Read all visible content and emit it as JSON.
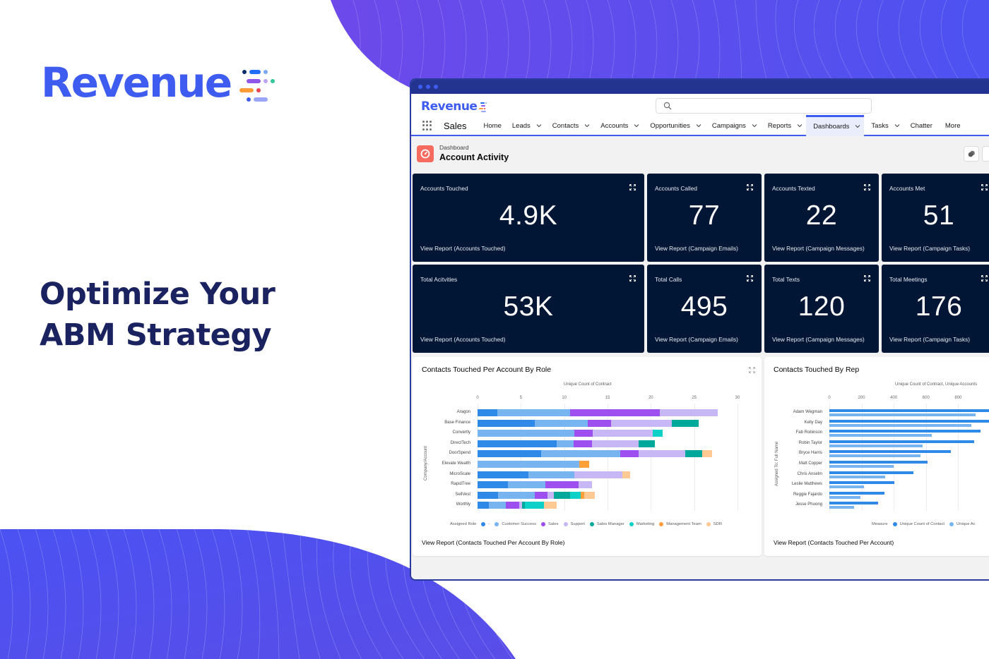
{
  "brand": {
    "name": "Revenue",
    "color": "#3e5cf0",
    "mark_colors": [
      "#0b2d6e",
      "#1f6ef7",
      "#7aa8f7",
      "#8f56ea",
      "#b9a5f2",
      "#31c79a",
      "#ff9c38",
      "#f0424f",
      "#3e5cf0",
      "#9aa6f5"
    ]
  },
  "hero": {
    "line1": "Optimize Your",
    "line2": "ABM Strategy",
    "color": "#1b2260"
  },
  "window": {
    "titlebar_color": "#22348f",
    "app_logo": "Revenue",
    "search": {
      "placeholder": "",
      "value": ""
    },
    "app_name": "Sales",
    "nav": [
      {
        "label": "Home",
        "dropdown": false,
        "active": false
      },
      {
        "label": "Leads",
        "dropdown": true,
        "active": false
      },
      {
        "label": "Contacts",
        "dropdown": true,
        "active": false
      },
      {
        "label": "Accounts",
        "dropdown": true,
        "active": false
      },
      {
        "label": "Opportunities",
        "dropdown": true,
        "active": false
      },
      {
        "label": "Campaigns",
        "dropdown": true,
        "active": false
      },
      {
        "label": "Reports",
        "dropdown": true,
        "active": false
      },
      {
        "label": "Dashboards",
        "dropdown": true,
        "active": true
      },
      {
        "label": "Tasks",
        "dropdown": true,
        "active": false
      },
      {
        "label": "Chatter",
        "dropdown": false,
        "active": false
      },
      {
        "label": "More",
        "dropdown": false,
        "active": false
      }
    ],
    "page": {
      "breadcrumb": "Dashboard",
      "title": "Account Activity"
    }
  },
  "metrics": [
    {
      "title": "Accounts Touched",
      "value": "4.9K",
      "link": "View Report (Accounts Touched)"
    },
    {
      "title": "Accounts Called",
      "value": "77",
      "link": "View Report (Campaign Emails)"
    },
    {
      "title": "Accounts Texted",
      "value": "22",
      "link": "View Report (Campaign Messages)"
    },
    {
      "title": "Accounts Met",
      "value": "51",
      "link": "View Report (Campaign Tasks)"
    },
    {
      "title": "Total Acitvities",
      "value": "53K",
      "link": "View Report (Accounts Touched)"
    },
    {
      "title": "Total Calls",
      "value": "495",
      "link": "View Report (Campaign Emails)"
    },
    {
      "title": "Total Texts",
      "value": "120",
      "link": "View Report (Campaign Messages)"
    },
    {
      "title": "Total Meetings",
      "value": "176",
      "link": "View Report (Campaign Tasks)"
    }
  ],
  "chart_data": [
    {
      "type": "bar",
      "orientation": "horizontal",
      "stacked": true,
      "title": "Contacts Touched Per Account By Role",
      "xlabel": "Unique Count of Contract",
      "ylabel": "Company/Account",
      "xlim": [
        0,
        30
      ],
      "xticks": [
        "0",
        "5",
        "10",
        "15",
        "20",
        "25",
        "30"
      ],
      "grid": true,
      "legend_title": "Assigned Role",
      "legend_position": "bottom",
      "categories": [
        "Aragon",
        "Base Finance",
        "Convertly",
        "DirectTech",
        "DoorSpend",
        "Elevate Wealth",
        "MicroScale",
        "RapidTree",
        "SellVest",
        "Worthly"
      ],
      "series": [
        {
          "name": "-",
          "color": "#2e8ae6",
          "values": [
            2.3,
            6.6,
            0,
            9.1,
            7.3,
            0,
            5.9,
            3.5,
            2.4,
            1.3
          ]
        },
        {
          "name": "Customer Success",
          "color": "#78b4f0",
          "values": [
            8.4,
            6.1,
            11.2,
            2.0,
            9.2,
            11.7,
            5.3,
            4.3,
            4.2,
            2.0
          ]
        },
        {
          "name": "Sales",
          "color": "#9d4ff0",
          "values": [
            10.3,
            2.7,
            2.1,
            2.1,
            2.1,
            0,
            0,
            3.9,
            1.5,
            1.5
          ]
        },
        {
          "name": "Support",
          "color": "#c7b7f5",
          "values": [
            6.7,
            7.0,
            6.9,
            5.4,
            5.4,
            0,
            5.5,
            1.5,
            0.7,
            0.3
          ]
        },
        {
          "name": "Sales Manager",
          "color": "#00a79b",
          "values": [
            0,
            3.1,
            0,
            1.9,
            1.9,
            0,
            0,
            0,
            1.9,
            0.4
          ]
        },
        {
          "name": "Marketing",
          "color": "#0dd1c8",
          "values": [
            0,
            0,
            1.2,
            0,
            0,
            0,
            0,
            0,
            1.2,
            2.2
          ]
        },
        {
          "name": "Management Team",
          "color": "#ff9f3a",
          "values": [
            0,
            0,
            0,
            0,
            0,
            1.2,
            0,
            0,
            0.4,
            0
          ]
        },
        {
          "name": "SDR",
          "color": "#ffc994",
          "values": [
            0,
            0,
            0,
            0,
            1.2,
            0,
            0.9,
            0,
            1.2,
            1.4
          ]
        }
      ],
      "footer_link": "View Report (Contacts Touched Per Account By Role)"
    },
    {
      "type": "bar",
      "orientation": "horizontal",
      "stacked": false,
      "title": "Contacts Touched By Rep",
      "xlabel": "Unique Count of Contract, Unique Accounts",
      "ylabel": "Assigned To: Full Name",
      "xlim": [
        0,
        1000
      ],
      "xticks": [
        "0",
        "200",
        "400",
        "600",
        "800"
      ],
      "grid": true,
      "legend_title": "Measure",
      "legend_position": "bottom",
      "categories": [
        "Adam Wegman",
        "Kelly Day",
        "Fab Robinson",
        "Robin Taylor",
        "Bryce Harris",
        "Matt Copper",
        "Chris Anselm",
        "Leslie Matthews",
        "Reggie Fajardo",
        "Jesse Phuong"
      ],
      "series": [
        {
          "name": "Unique Count of Contact",
          "color": "#2e8ae6",
          "values": [
            1000,
            1000,
            940,
            900,
            755,
            610,
            520,
            405,
            340,
            302
          ]
        },
        {
          "name": "Unique Accounts",
          "color": "#78b4f0",
          "values": [
            907,
            883,
            638,
            580,
            567,
            398,
            348,
            217,
            195,
            152
          ]
        }
      ],
      "legend_labels": [
        "Unique Count of Contact",
        "Unique Ac"
      ],
      "footer_link": "View Report (Contacts Touched Per Account)"
    }
  ]
}
